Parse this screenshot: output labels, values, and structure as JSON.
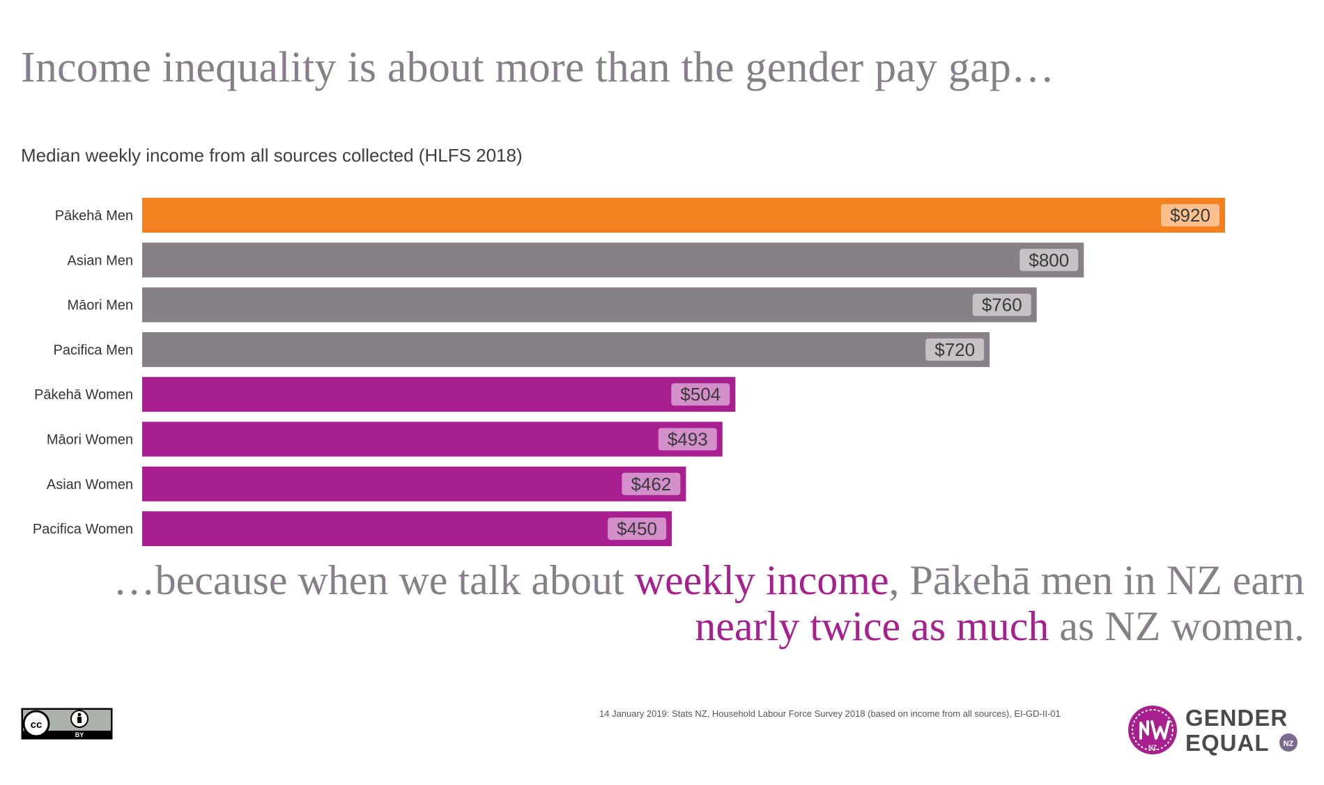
{
  "title": "Income inequality is about more than the gender pay gap…",
  "colors": {
    "pakeha_men": "#f48120",
    "other_men": "#878087",
    "women": "#a8208f",
    "text_grey": "#867f88"
  },
  "chart_data": {
    "type": "bar",
    "orientation": "horizontal",
    "title": "Median weekly income from all sources collected (HLFS 2018)",
    "categories": [
      "Pākehā Men",
      "Asian Men",
      "Māori Men",
      "Pacifica Men",
      "Pākehā Women",
      "Māori Women",
      "Asian Women",
      "Pacifica Women"
    ],
    "values": [
      920,
      800,
      760,
      720,
      504,
      493,
      462,
      450
    ],
    "value_labels": [
      "$920",
      "$800",
      "$760",
      "$720",
      "$504",
      "$493",
      "$462",
      "$450"
    ],
    "bar_color_keys": [
      "pakeha_men",
      "other_men",
      "other_men",
      "other_men",
      "women",
      "women",
      "women",
      "women"
    ],
    "xlim": [
      0,
      920
    ],
    "grid": false,
    "legend": "none"
  },
  "tagline": {
    "part1": "…because when we talk about ",
    "part2": "weekly income",
    "part3": ", Pākehā men in NZ earn",
    "part4": "nearly twice as much",
    "part5": " as NZ women."
  },
  "source": "14 January 2019: Stats NZ, Household Labour Force Survey 2018 (based on income from all sources), EI-GD-II-01",
  "license": {
    "cc": "cc",
    "by": "BY"
  },
  "logo": {
    "mark_text": "NZ",
    "line1": "GENDER",
    "line2": "EQUAL",
    "badge": "NZ"
  }
}
